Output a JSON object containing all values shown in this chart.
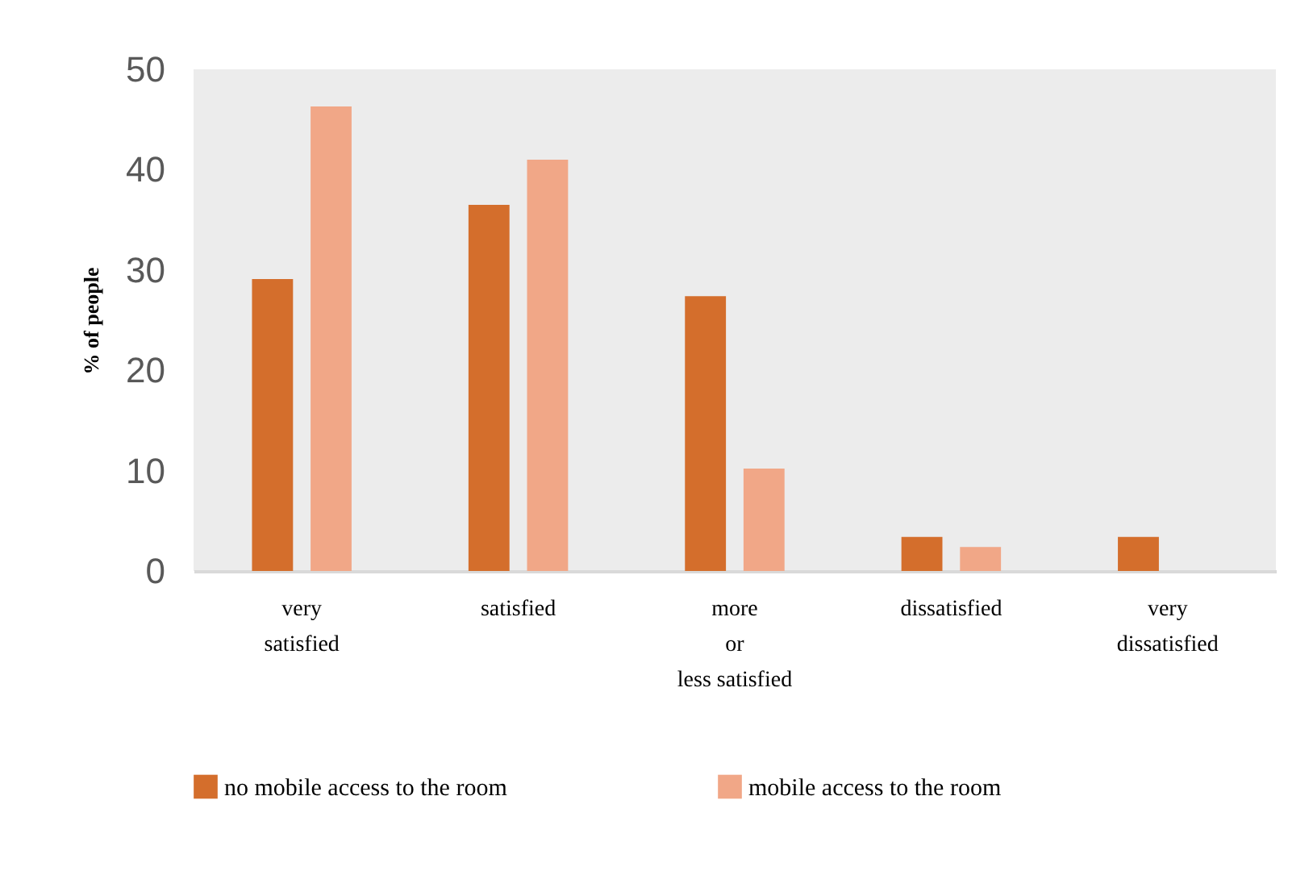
{
  "chart_data": {
    "type": "bar",
    "ylabel": "% of people",
    "categories": [
      "very\nsatisfied",
      "satisfied",
      "more\nor\nless satisfied",
      "dissatisfied",
      "very\ndissatisfied"
    ],
    "series": [
      {
        "name": "no mobile access to the room",
        "color": "#d46e2c",
        "values": [
          29.1,
          36.5,
          27.4,
          3.4,
          3.4
        ]
      },
      {
        "name": "mobile access to the room",
        "color": "#f1a787",
        "values": [
          46.3,
          41.0,
          10.2,
          2.4,
          0
        ]
      }
    ],
    "ylim": [
      0,
      50
    ],
    "yticks": [
      0,
      10,
      20,
      30,
      40,
      50
    ],
    "legend": "bottom"
  }
}
